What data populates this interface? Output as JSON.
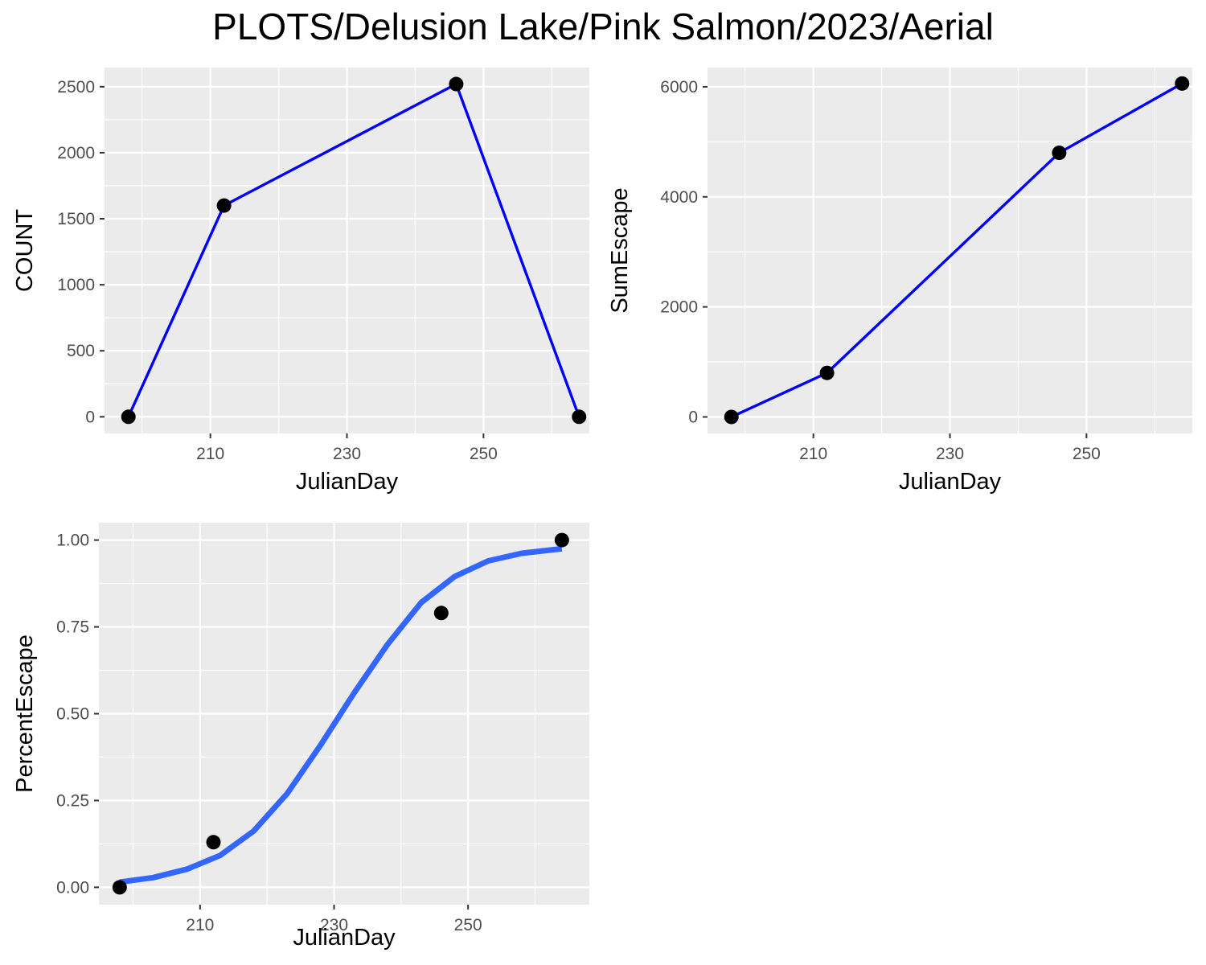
{
  "title": "PLOTS/Delusion Lake/Pink Salmon/2023/Aerial",
  "colors": {
    "panel_bg": "#EBEBEB",
    "grid": "#FFFFFF",
    "line": "#0000FF",
    "smooth": "#3366FF",
    "point": "#000000",
    "tick_text": "#4D4D4D",
    "tick_mark": "#333333"
  },
  "chart_data": [
    {
      "type": "line",
      "xlabel": "JulianDay",
      "ylabel": "COUNT",
      "xlim": [
        194.5,
        265.5
      ],
      "ylim": [
        -126,
        2645
      ],
      "xticks": [
        210,
        230,
        250
      ],
      "xtick_labels": [
        "210",
        "230",
        "250"
      ],
      "yticks": [
        0,
        500,
        1000,
        1500,
        2000,
        2500
      ],
      "ytick_labels": [
        "0",
        "500",
        "1000",
        "1500",
        "2000",
        "2500"
      ],
      "grid": true,
      "series": [
        {
          "x": [
            198,
            212,
            246,
            264
          ],
          "y": [
            0,
            1600,
            2520,
            0
          ]
        }
      ]
    },
    {
      "type": "line",
      "xlabel": "JulianDay",
      "ylabel": "SumEscape",
      "xlim": [
        194.5,
        265.5
      ],
      "ylim": [
        -300,
        6350
      ],
      "xticks": [
        210,
        230,
        250
      ],
      "xtick_labels": [
        "210",
        "230",
        "250"
      ],
      "yticks": [
        0,
        2000,
        4000,
        6000
      ],
      "ytick_labels": [
        "0",
        "2000",
        "4000",
        "6000"
      ],
      "grid": true,
      "series": [
        {
          "x": [
            198,
            212,
            246,
            264
          ],
          "y": [
            0,
            800,
            4800,
            6060
          ]
        }
      ]
    },
    {
      "type": "scatter",
      "xlabel": "JulianDay",
      "ylabel": "PercentEscape",
      "xlim": [
        194.9,
        268.1
      ],
      "ylim": [
        -0.05,
        1.05
      ],
      "xticks": [
        210,
        230,
        250
      ],
      "xtick_labels": [
        "210",
        "230",
        "250"
      ],
      "yticks": [
        0,
        0.25,
        0.5,
        0.75,
        1
      ],
      "ytick_labels": [
        "0.00",
        "0.25",
        "0.50",
        "0.75",
        "1.00"
      ],
      "grid": true,
      "points": {
        "x": [
          198,
          212,
          246,
          264
        ],
        "y": [
          0,
          0.13,
          0.79,
          1
        ]
      },
      "fitted_curve": {
        "x": [
          198,
          203,
          208,
          213,
          218,
          223,
          228,
          233,
          238,
          243,
          248,
          253,
          258,
          264
        ],
        "y": [
          0.015,
          0.028,
          0.052,
          0.092,
          0.162,
          0.27,
          0.41,
          0.56,
          0.7,
          0.82,
          0.895,
          0.94,
          0.962,
          0.975
        ]
      }
    }
  ]
}
